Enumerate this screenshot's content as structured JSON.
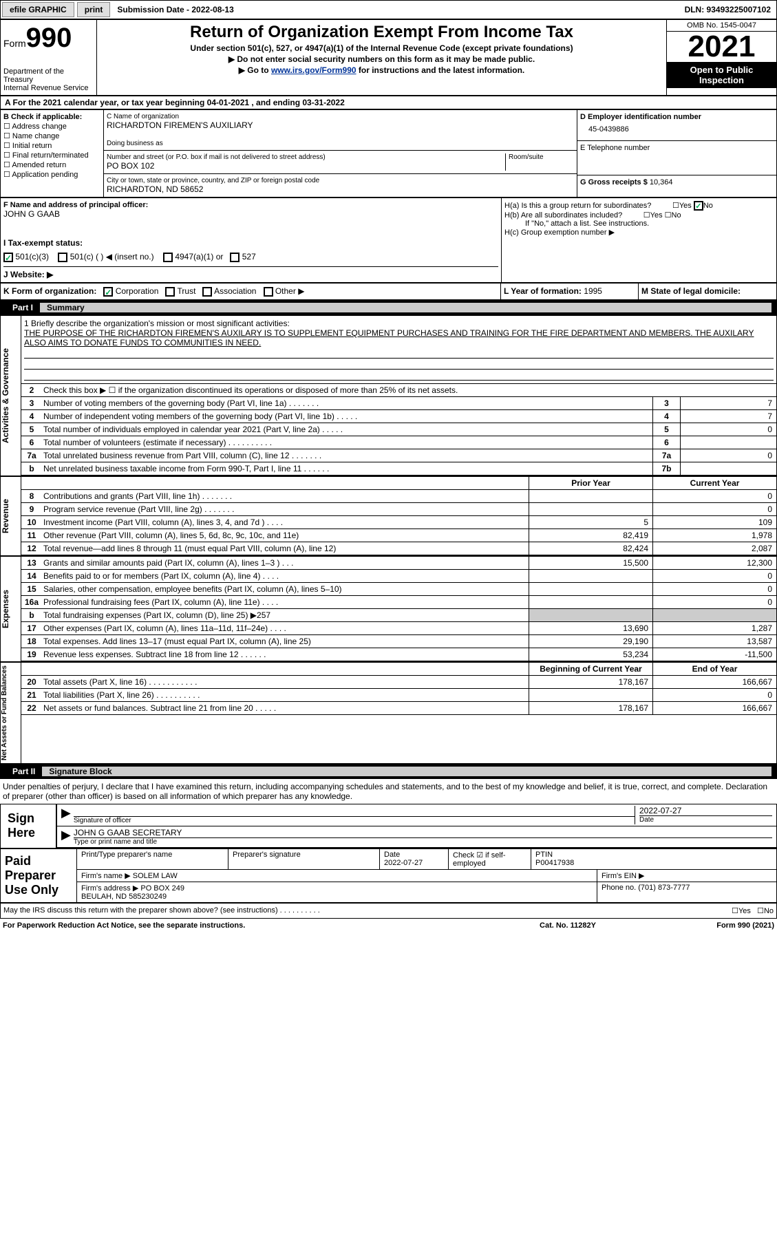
{
  "topbar": {
    "efile": "efile GRAPHIC",
    "print": "print",
    "submission_label": "Submission Date - 2022-08-13",
    "dln": "DLN: 93493225007102"
  },
  "header": {
    "form_label": "Form",
    "form_number": "990",
    "title": "Return of Organization Exempt From Income Tax",
    "sub1": "Under section 501(c), 527, or 4947(a)(1) of the Internal Revenue Code (except private foundations)",
    "sub2": "▶ Do not enter social security numbers on this form as it may be made public.",
    "sub3": "▶ Go to www.irs.gov/Form990 for instructions and the latest information.",
    "link": "www.irs.gov/Form990",
    "dept": "Department of the Treasury\nInternal Revenue Service",
    "omb": "OMB No. 1545-0047",
    "year": "2021",
    "public": "Open to Public Inspection"
  },
  "rowA": "A For the 2021 calendar year, or tax year beginning 04-01-2021    , and ending 03-31-2022",
  "sectionB": {
    "check_label": "B Check if applicable:",
    "opts": [
      "Address change",
      "Name change",
      "Initial return",
      "Final return/terminated",
      "Amended return",
      "Application pending"
    ],
    "c_label": "C Name of organization",
    "org_name": "RICHARDTON FIREMEN'S AUXILIARY",
    "dba_label": "Doing business as",
    "street_label": "Number and street (or P.O. box if mail is not delivered to street address)",
    "street": "PO BOX 102",
    "room_label": "Room/suite",
    "city_label": "City or town, state or province, country, and ZIP or foreign postal code",
    "city": "RICHARDTON, ND  58652",
    "d_label": "D Employer identification number",
    "ein": "45-0439886",
    "e_label": "E Telephone number",
    "g_label": "G Gross receipts $",
    "g_value": "10,364"
  },
  "officer": {
    "f_label": "F Name and address of principal officer:",
    "name": "JOHN G GAAB"
  },
  "hbox": {
    "ha": "H(a)  Is this a group return for subordinates?",
    "hb": "H(b)  Are all subordinates included?",
    "hb_note": "If \"No,\" attach a list. See instructions.",
    "hc": "H(c)  Group exemption number ▶",
    "yes": "Yes",
    "no": "No"
  },
  "status": {
    "i_label": "I  Tax-exempt status:",
    "s1": "501(c)(3)",
    "s2": "501(c) (  ) ◀ (insert no.)",
    "s3": "4947(a)(1) or",
    "s4": "527",
    "j_label": "J  Website: ▶"
  },
  "krow": {
    "k_label": "K Form of organization:",
    "corp": "Corporation",
    "trust": "Trust",
    "assoc": "Association",
    "other": "Other ▶",
    "l_label": "L Year of formation:",
    "l_val": "1995",
    "m_label": "M State of legal domicile:"
  },
  "part1": {
    "label": "Part I",
    "title": "Summary"
  },
  "mission": {
    "label": "1  Briefly describe the organization's mission or most significant activities:",
    "text": "THE PURPOSE OF THE RICHARDTON FIREMEN'S AUXILARY IS TO SUPPLEMENT EQUIPMENT PURCHASES AND TRAINING FOR THE FIRE DEPARTMENT AND MEMBERS. THE AUXILARY ALSO AIMS TO DONATE FUNDS TO COMMUNITIES IN NEED."
  },
  "gov_rows": [
    {
      "n": "2",
      "desc": "Check this box ▶ ☐  if the organization discontinued its operations or disposed of more than 25% of its net assets.",
      "box": "",
      "val": ""
    },
    {
      "n": "3",
      "desc": "Number of voting members of the governing body (Part VI, line 1a)   .    .    .    .    .    .    .",
      "box": "3",
      "val": "7"
    },
    {
      "n": "4",
      "desc": "Number of independent voting members of the governing body (Part VI, line 1b)   .    .    .    .    .",
      "box": "4",
      "val": "7"
    },
    {
      "n": "5",
      "desc": "Total number of individuals employed in calendar year 2021 (Part V, line 2a)   .    .    .    .    .",
      "box": "5",
      "val": "0"
    },
    {
      "n": "6",
      "desc": "Total number of volunteers (estimate if necessary)    .    .    .    .    .    .    .    .    .    .",
      "box": "6",
      "val": ""
    },
    {
      "n": "7a",
      "desc": "Total unrelated business revenue from Part VIII, column (C), line 12   .    .    .    .    .    .    .",
      "box": "7a",
      "val": "0"
    },
    {
      "n": "b",
      "desc": "Net unrelated business taxable income from Form 990-T, Part I, line 11   .    .    .    .    .    .",
      "box": "7b",
      "val": ""
    }
  ],
  "col_headers": {
    "prior": "Prior Year",
    "current": "Current Year"
  },
  "revenue_rows": [
    {
      "n": "8",
      "desc": "Contributions and grants (Part VIII, line 1h)    .    .    .    .    .    .    .",
      "p": "",
      "c": "0"
    },
    {
      "n": "9",
      "desc": "Program service revenue (Part VIII, line 2g)   .    .    .    .    .    .    .",
      "p": "",
      "c": "0"
    },
    {
      "n": "10",
      "desc": "Investment income (Part VIII, column (A), lines 3, 4, and 7d )   .    .    .    .",
      "p": "5",
      "c": "109"
    },
    {
      "n": "11",
      "desc": "Other revenue (Part VIII, column (A), lines 5, 6d, 8c, 9c, 10c, and 11e)",
      "p": "82,419",
      "c": "1,978"
    },
    {
      "n": "12",
      "desc": "Total revenue—add lines 8 through 11 (must equal Part VIII, column (A), line 12)",
      "p": "82,424",
      "c": "2,087"
    }
  ],
  "expense_rows": [
    {
      "n": "13",
      "desc": "Grants and similar amounts paid (Part IX, column (A), lines 1–3 )   .    .    .",
      "p": "15,500",
      "c": "12,300"
    },
    {
      "n": "14",
      "desc": "Benefits paid to or for members (Part IX, column (A), line 4)   .    .    .    .",
      "p": "",
      "c": "0"
    },
    {
      "n": "15",
      "desc": "Salaries, other compensation, employee benefits (Part IX, column (A), lines 5–10)",
      "p": "",
      "c": "0"
    },
    {
      "n": "16a",
      "desc": "Professional fundraising fees (Part IX, column (A), line 11e)   .    .    .    .",
      "p": "",
      "c": "0"
    },
    {
      "n": "b",
      "desc": "Total fundraising expenses (Part IX, column (D), line 25) ▶257",
      "p": "grey",
      "c": "grey"
    },
    {
      "n": "17",
      "desc": "Other expenses (Part IX, column (A), lines 11a–11d, 11f–24e)   .    .    .    .",
      "p": "13,690",
      "c": "1,287"
    },
    {
      "n": "18",
      "desc": "Total expenses. Add lines 13–17 (must equal Part IX, column (A), line 25)",
      "p": "29,190",
      "c": "13,587"
    },
    {
      "n": "19",
      "desc": "Revenue less expenses. Subtract line 18 from line 12   .    .    .    .    .    .",
      "p": "53,234",
      "c": "-11,500"
    }
  ],
  "net_headers": {
    "begin": "Beginning of Current Year",
    "end": "End of Year"
  },
  "net_rows": [
    {
      "n": "20",
      "desc": "Total assets (Part X, line 16)   .    .    .    .    .    .    .    .    .    .    .",
      "p": "178,167",
      "c": "166,667"
    },
    {
      "n": "21",
      "desc": "Total liabilities (Part X, line 26)   .    .    .    .    .    .    .    .    .    .",
      "p": "",
      "c": "0"
    },
    {
      "n": "22",
      "desc": "Net assets or fund balances. Subtract line 21 from line 20   .    .    .    .    .",
      "p": "178,167",
      "c": "166,667"
    }
  ],
  "vtabs": {
    "gov": "Activities & Governance",
    "rev": "Revenue",
    "exp": "Expenses",
    "net": "Net Assets or Fund Balances"
  },
  "part2": {
    "label": "Part II",
    "title": "Signature Block"
  },
  "sig": {
    "penalty": "Under penalties of perjury, I declare that I have examined this return, including accompanying schedules and statements, and to the best of my knowledge and belief, it is true, correct, and complete. Declaration of preparer (other than officer) is based on all information of which preparer has any knowledge.",
    "sign_here": "Sign Here",
    "sig_officer": "Signature of officer",
    "date": "2022-07-27",
    "date_label": "Date",
    "name": "JOHN G GAAB  SECRETARY",
    "name_label": "Type or print name and title"
  },
  "paid": {
    "label": "Paid Preparer Use Only",
    "r1": {
      "c1": "Print/Type preparer's name",
      "c2": "Preparer's signature",
      "c3": "Date\n2022-07-27",
      "c4": "Check ☑  if self-employed",
      "c5": "PTIN\nP00417938"
    },
    "r2": {
      "c1": "Firm's name    ▶ SOLEM LAW",
      "c2": "Firm's EIN ▶"
    },
    "r3": {
      "c1": "Firm's address ▶ PO BOX 249\n                        BEULAH, ND  585230249",
      "c2": "Phone no. (701) 873-7777"
    }
  },
  "footer": {
    "discuss": "May the IRS discuss this return with the preparer shown above? (see instructions)   .    .    .    .    .    .    .    .    .    .",
    "yes": "Yes",
    "no": "No",
    "paperwork": "For Paperwork Reduction Act Notice, see the separate instructions.",
    "cat": "Cat. No. 11282Y",
    "form": "Form 990 (2021)"
  }
}
